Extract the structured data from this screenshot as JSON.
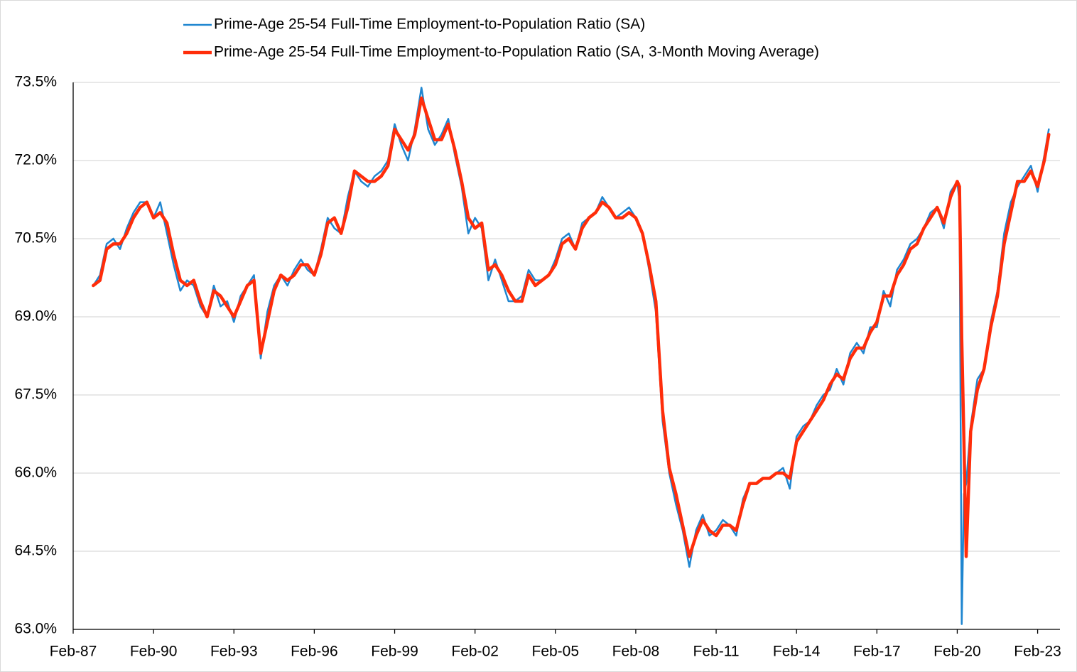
{
  "chart_data": {
    "type": "line",
    "legend": "top",
    "grid": true,
    "x": [
      "Nov-87",
      "Feb-88",
      "May-88",
      "Aug-88",
      "Nov-88",
      "Feb-89",
      "May-89",
      "Aug-89",
      "Nov-89",
      "Feb-90",
      "May-90",
      "Aug-90",
      "Nov-90",
      "Feb-91",
      "May-91",
      "Aug-91",
      "Nov-91",
      "Feb-92",
      "May-92",
      "Aug-92",
      "Nov-92",
      "Feb-93",
      "May-93",
      "Aug-93",
      "Nov-93",
      "Feb-94",
      "May-94",
      "Aug-94",
      "Nov-94",
      "Feb-95",
      "May-95",
      "Aug-95",
      "Nov-95",
      "Feb-96",
      "May-96",
      "Aug-96",
      "Nov-96",
      "Feb-97",
      "May-97",
      "Aug-97",
      "Nov-97",
      "Feb-98",
      "May-98",
      "Aug-98",
      "Nov-98",
      "Feb-99",
      "May-99",
      "Aug-99",
      "Nov-99",
      "Feb-00",
      "May-00",
      "Aug-00",
      "Nov-00",
      "Feb-01",
      "May-01",
      "Aug-01",
      "Nov-01",
      "Feb-02",
      "May-02",
      "Aug-02",
      "Nov-02",
      "Feb-03",
      "May-03",
      "Aug-03",
      "Nov-03",
      "Feb-04",
      "May-04",
      "Aug-04",
      "Nov-04",
      "Feb-05",
      "May-05",
      "Aug-05",
      "Nov-05",
      "Feb-06",
      "May-06",
      "Aug-06",
      "Nov-06",
      "Feb-07",
      "May-07",
      "Aug-07",
      "Nov-07",
      "Feb-08",
      "May-08",
      "Aug-08",
      "Nov-08",
      "Feb-09",
      "May-09",
      "Aug-09",
      "Nov-09",
      "Feb-10",
      "May-10",
      "Aug-10",
      "Nov-10",
      "Feb-11",
      "May-11",
      "Aug-11",
      "Nov-11",
      "Feb-12",
      "May-12",
      "Aug-12",
      "Nov-12",
      "Feb-13",
      "May-13",
      "Aug-13",
      "Nov-13",
      "Feb-14",
      "May-14",
      "Aug-14",
      "Nov-14",
      "Feb-15",
      "May-15",
      "Aug-15",
      "Nov-15",
      "Feb-16",
      "May-16",
      "Aug-16",
      "Nov-16",
      "Feb-17",
      "May-17",
      "Aug-17",
      "Nov-17",
      "Feb-18",
      "May-18",
      "Aug-18",
      "Nov-18",
      "Feb-19",
      "May-19",
      "Aug-19",
      "Nov-19",
      "Feb-20",
      "Mar-20",
      "Apr-20",
      "May-20",
      "Jun-20",
      "Aug-20",
      "Nov-20",
      "Feb-21",
      "May-21",
      "Aug-21",
      "Nov-21",
      "Feb-22",
      "May-22",
      "Aug-22",
      "Nov-22",
      "Feb-23",
      "May-23",
      "Jul-23"
    ],
    "series": [
      {
        "name": "Prime-Age 25-54 Full-Time Employment-to-Population Ratio (SA)",
        "color": "#1f86d0",
        "width": 2.5,
        "values": [
          69.6,
          69.8,
          70.4,
          70.5,
          70.3,
          70.7,
          71.0,
          71.2,
          71.2,
          70.9,
          71.2,
          70.6,
          70.0,
          69.5,
          69.7,
          69.6,
          69.2,
          69.0,
          69.6,
          69.2,
          69.3,
          68.9,
          69.4,
          69.6,
          69.8,
          68.2,
          69.1,
          69.6,
          69.8,
          69.6,
          69.9,
          70.1,
          69.9,
          69.8,
          70.3,
          70.9,
          70.7,
          70.6,
          71.3,
          71.8,
          71.6,
          71.5,
          71.7,
          71.8,
          72.0,
          72.7,
          72.3,
          72.0,
          72.6,
          73.4,
          72.6,
          72.3,
          72.5,
          72.8,
          72.1,
          71.5,
          70.6,
          70.9,
          70.7,
          69.7,
          70.1,
          69.7,
          69.3,
          69.3,
          69.4,
          69.9,
          69.7,
          69.7,
          69.8,
          70.1,
          70.5,
          70.6,
          70.3,
          70.8,
          70.9,
          71.0,
          71.3,
          71.1,
          70.9,
          71.0,
          71.1,
          70.9,
          70.6,
          69.9,
          69.1,
          67.0,
          66.0,
          65.4,
          64.9,
          64.2,
          64.9,
          65.2,
          64.8,
          64.9,
          65.1,
          65.0,
          64.8,
          65.5,
          65.8,
          65.8,
          65.9,
          65.9,
          66.0,
          66.1,
          65.7,
          66.7,
          66.9,
          67.0,
          67.3,
          67.5,
          67.6,
          68.0,
          67.7,
          68.3,
          68.5,
          68.3,
          68.8,
          68.8,
          69.5,
          69.2,
          69.9,
          70.1,
          70.4,
          70.5,
          70.7,
          71.0,
          71.1,
          70.7,
          71.4,
          71.6,
          71.2,
          63.1,
          65.6,
          65.8,
          66.9,
          67.8,
          68.0,
          68.9,
          69.5,
          70.6,
          71.2,
          71.5,
          71.7,
          71.9,
          71.4,
          72.1,
          72.6
        ]
      },
      {
        "name": "Prime-Age 25-54 Full-Time Employment-to-Population Ratio (SA, 3-Month Moving Average)",
        "color": "#ff2d0a",
        "width": 4.5,
        "values": [
          69.6,
          69.7,
          70.3,
          70.4,
          70.4,
          70.6,
          70.9,
          71.1,
          71.2,
          70.9,
          71.0,
          70.8,
          70.2,
          69.7,
          69.6,
          69.7,
          69.3,
          69.0,
          69.5,
          69.4,
          69.2,
          69.0,
          69.3,
          69.6,
          69.7,
          68.3,
          68.9,
          69.5,
          69.8,
          69.7,
          69.8,
          70.0,
          70.0,
          69.8,
          70.2,
          70.8,
          70.9,
          70.6,
          71.1,
          71.8,
          71.7,
          71.6,
          71.6,
          71.7,
          71.9,
          72.6,
          72.4,
          72.2,
          72.5,
          73.2,
          72.8,
          72.4,
          72.4,
          72.7,
          72.2,
          71.6,
          70.9,
          70.7,
          70.8,
          69.9,
          70.0,
          69.8,
          69.5,
          69.3,
          69.3,
          69.8,
          69.6,
          69.7,
          69.8,
          70.0,
          70.4,
          70.5,
          70.3,
          70.7,
          70.9,
          71.0,
          71.2,
          71.1,
          70.9,
          70.9,
          71.0,
          70.9,
          70.6,
          70.0,
          69.3,
          67.2,
          66.1,
          65.6,
          65.0,
          64.4,
          64.8,
          65.1,
          64.9,
          64.8,
          65.0,
          65.0,
          64.9,
          65.4,
          65.8,
          65.8,
          65.9,
          65.9,
          66.0,
          66.0,
          65.9,
          66.6,
          66.8,
          67.0,
          67.2,
          67.4,
          67.7,
          67.9,
          67.8,
          68.2,
          68.4,
          68.4,
          68.7,
          68.9,
          69.4,
          69.4,
          69.8,
          70.0,
          70.3,
          70.4,
          70.7,
          70.9,
          71.1,
          70.8,
          71.3,
          71.6,
          71.5,
          68.6,
          66.6,
          64.4,
          66.8,
          67.6,
          68.0,
          68.8,
          69.4,
          70.4,
          71.0,
          71.6,
          71.6,
          71.8,
          71.5,
          72.0,
          72.5
        ]
      }
    ],
    "xlim": [
      "Feb-87",
      "Dec-23"
    ],
    "xticks": [
      "Feb-87",
      "Feb-90",
      "Feb-93",
      "Feb-96",
      "Feb-99",
      "Feb-02",
      "Feb-05",
      "Feb-08",
      "Feb-11",
      "Feb-14",
      "Feb-17",
      "Feb-20",
      "Feb-23"
    ],
    "ylim": [
      63,
      73.5
    ],
    "yticks": [
      {
        "value": 63,
        "label": "63.0%"
      },
      {
        "value": 64.5,
        "label": "64.5%"
      },
      {
        "value": 66,
        "label": "66.0%"
      },
      {
        "value": 67.5,
        "label": "67.5%"
      },
      {
        "value": 69,
        "label": "69.0%"
      },
      {
        "value": 70.5,
        "label": "70.5%"
      },
      {
        "value": 72,
        "label": "72.0%"
      },
      {
        "value": 73.5,
        "label": "73.5%"
      }
    ]
  }
}
